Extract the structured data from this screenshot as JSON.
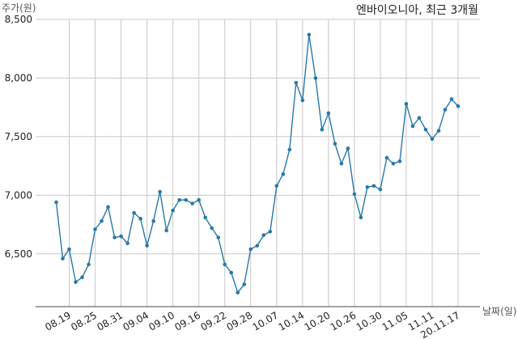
{
  "chart_data": {
    "type": "line",
    "title": "엔바이오니아, 최근 3개월",
    "ylabel": "주가(원)",
    "xlabel": "날짜(일)",
    "ylim": [
      6050,
      8500
    ],
    "yticks": [
      6500,
      7000,
      7500,
      8000,
      8500
    ],
    "ytick_labels": [
      "6,500",
      "7,000",
      "7,500",
      "8,000",
      "8,500"
    ],
    "grid": true,
    "x_tick_labels": [
      "08.19",
      "08.25",
      "08.31",
      "09.04",
      "09.10",
      "09.16",
      "09.22",
      "09.28",
      "10.07",
      "10.14",
      "10.20",
      "10.26",
      "10.30",
      "11.05",
      "11.11",
      "20.11.17"
    ],
    "x_tick_index": [
      2,
      6,
      10,
      14,
      18,
      22,
      26,
      30,
      34,
      38,
      42,
      46,
      50,
      54,
      58,
      62
    ],
    "series": [
      {
        "values": [
          6940,
          6460,
          6540,
          6260,
          6300,
          6410,
          6710,
          6780,
          6900,
          6640,
          6650,
          6590,
          6850,
          6800,
          6570,
          6780,
          7030,
          6700,
          6870,
          6960,
          6960,
          6930,
          6960,
          6810,
          6720,
          6640,
          6410,
          6340,
          6170,
          6240,
          6540,
          6570,
          6660,
          6690,
          7080,
          7180,
          7390,
          7960,
          7810,
          8370,
          8000,
          7560,
          7700,
          7440,
          7270,
          7400,
          7010,
          6810,
          7070,
          7080,
          7050,
          7320,
          7270,
          7290,
          7780,
          7590,
          7660,
          7560,
          7480,
          7550,
          7730,
          7820,
          7760
        ]
      }
    ]
  },
  "colors": {
    "line": "#2878a8",
    "grid": "#c8c8c8",
    "axis": "#444444"
  }
}
